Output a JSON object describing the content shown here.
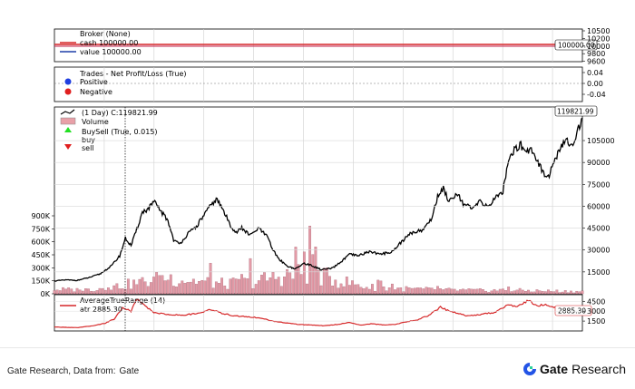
{
  "footer": {
    "source_label": "Gate Research, Data from:",
    "source_name": "Gate",
    "brand_name": "Gate",
    "brand_suffix": "Research",
    "brand_color": "#2354e6"
  },
  "chart_data": [
    {
      "panel": "broker",
      "type": "line",
      "legend": [
        "Broker (None)",
        "cash 100000.00",
        "value 100000.00"
      ],
      "value_tag": "100000.00",
      "yticks": [
        "10500",
        "10200",
        "10000",
        "9800",
        "9600"
      ],
      "series": [
        {
          "name": "cash 100000.00",
          "color": "#d62728",
          "value": 100000
        },
        {
          "name": "value 100000.00",
          "color": "#1f3ea8",
          "value": 100000
        }
      ]
    },
    {
      "panel": "trades",
      "type": "scatter",
      "legend": [
        "Trades - Net Profit/Loss (True)",
        "Positive",
        "Negative"
      ],
      "legend_colors": [
        "#1f3ee0",
        "#e01f1f"
      ],
      "yticks": [
        "0.04",
        "0.00",
        "-0.04"
      ]
    },
    {
      "panel": "price",
      "type": "line",
      "legend": [
        "(1 Day) C:119821.99",
        "Volume",
        "BuySell (True, 0.015)",
        "buy",
        "sell"
      ],
      "last_value_tag": "119821.99",
      "yticks_right": [
        "105000",
        "90000",
        "75000",
        "60000",
        "45000",
        "30000",
        "15000"
      ],
      "yticks_left": [
        "900K",
        "750K",
        "600K",
        "450K",
        "300K",
        "150K",
        "0K"
      ],
      "ylim": [
        0,
        128000
      ],
      "close_keypoints": [
        [
          0,
          8800
        ],
        [
          4,
          9500
        ],
        [
          8,
          9200
        ],
        [
          12,
          11000
        ],
        [
          16,
          13500
        ],
        [
          20,
          19000
        ],
        [
          23,
          26000
        ],
        [
          25,
          38000
        ],
        [
          27,
          33000
        ],
        [
          29,
          44000
        ],
        [
          31,
          56000
        ],
        [
          33,
          58000
        ],
        [
          35,
          63000
        ],
        [
          37,
          58000
        ],
        [
          40,
          50000
        ],
        [
          42,
          37000
        ],
        [
          44,
          34000
        ],
        [
          47,
          41000
        ],
        [
          50,
          46000
        ],
        [
          53,
          55000
        ],
        [
          55,
          60000
        ],
        [
          57,
          65000
        ],
        [
          59,
          59000
        ],
        [
          62,
          47000
        ],
        [
          64,
          42000
        ],
        [
          66,
          45000
        ],
        [
          69,
          40000
        ],
        [
          72,
          45000
        ],
        [
          75,
          39000
        ],
        [
          77,
          30000
        ],
        [
          79,
          24000
        ],
        [
          82,
          19000
        ],
        [
          85,
          17000
        ],
        [
          88,
          21000
        ],
        [
          91,
          19000
        ],
        [
          94,
          16500
        ],
        [
          98,
          17500
        ],
        [
          101,
          22000
        ],
        [
          104,
          27000
        ],
        [
          107,
          26000
        ],
        [
          111,
          29000
        ],
        [
          115,
          27000
        ],
        [
          119,
          29000
        ],
        [
          123,
          37000
        ],
        [
          126,
          42000
        ],
        [
          130,
          44000
        ],
        [
          133,
          52000
        ],
        [
          135,
          67000
        ],
        [
          137,
          72000
        ],
        [
          139,
          64000
        ],
        [
          142,
          69000
        ],
        [
          144,
          62000
        ],
        [
          147,
          58000
        ],
        [
          150,
          63000
        ],
        [
          153,
          60000
        ],
        [
          156,
          67000
        ],
        [
          158,
          70000
        ],
        [
          160,
          93000
        ],
        [
          162,
          98000
        ],
        [
          164,
          103000
        ],
        [
          166,
          97000
        ],
        [
          168,
          100000
        ],
        [
          170,
          92000
        ],
        [
          172,
          84000
        ],
        [
          174,
          80000
        ],
        [
          176,
          90000
        ],
        [
          178,
          98000
        ],
        [
          180,
          105000
        ],
        [
          182,
          102000
        ],
        [
          184,
          109000
        ],
        [
          186,
          119821.99
        ]
      ],
      "volume_keypoints": [
        [
          0,
          60000
        ],
        [
          10,
          50000
        ],
        [
          20,
          90000
        ],
        [
          30,
          150000
        ],
        [
          40,
          220000
        ],
        [
          50,
          170000
        ],
        [
          60,
          130000
        ],
        [
          70,
          160000
        ],
        [
          80,
          240000
        ],
        [
          90,
          280000
        ],
        [
          95,
          230000
        ],
        [
          100,
          180000
        ],
        [
          110,
          90000
        ],
        [
          120,
          70000
        ],
        [
          130,
          60000
        ],
        [
          140,
          50000
        ],
        [
          150,
          45000
        ],
        [
          160,
          50000
        ],
        [
          170,
          40000
        ],
        [
          186,
          30000
        ]
      ],
      "volume_ylim": [
        0,
        1000000
      ]
    },
    {
      "panel": "atr",
      "type": "line",
      "legend": [
        "AverageTrueRange (14)",
        "atr 2885.30"
      ],
      "value_tag": "2885.30",
      "yticks": [
        "4500",
        "3000",
        "1500"
      ],
      "ylim": [
        0,
        5500
      ],
      "color": "#d62728",
      "atr_keypoints": [
        [
          0,
          600
        ],
        [
          8,
          500
        ],
        [
          14,
          800
        ],
        [
          18,
          1200
        ],
        [
          21,
          1800
        ],
        [
          24,
          3500
        ],
        [
          27,
          3000
        ],
        [
          29,
          4800
        ],
        [
          32,
          3800
        ],
        [
          35,
          2800
        ],
        [
          40,
          2500
        ],
        [
          45,
          2400
        ],
        [
          50,
          2600
        ],
        [
          55,
          3300
        ],
        [
          58,
          2800
        ],
        [
          62,
          2400
        ],
        [
          66,
          2200
        ],
        [
          70,
          2100
        ],
        [
          74,
          1800
        ],
        [
          78,
          1400
        ],
        [
          82,
          1200
        ],
        [
          86,
          1000
        ],
        [
          90,
          900
        ],
        [
          95,
          800
        ],
        [
          100,
          1000
        ],
        [
          104,
          1300
        ],
        [
          108,
          900
        ],
        [
          112,
          1100
        ],
        [
          116,
          900
        ],
        [
          120,
          1000
        ],
        [
          124,
          1400
        ],
        [
          128,
          1700
        ],
        [
          132,
          2400
        ],
        [
          136,
          3600
        ],
        [
          139,
          3000
        ],
        [
          142,
          2700
        ],
        [
          145,
          2300
        ],
        [
          150,
          2500
        ],
        [
          155,
          2800
        ],
        [
          160,
          4100
        ],
        [
          163,
          3600
        ],
        [
          167,
          4600
        ],
        [
          170,
          3800
        ],
        [
          173,
          4000
        ],
        [
          176,
          3600
        ],
        [
          180,
          3300
        ],
        [
          184,
          2900
        ],
        [
          186,
          2885.3
        ]
      ]
    }
  ]
}
